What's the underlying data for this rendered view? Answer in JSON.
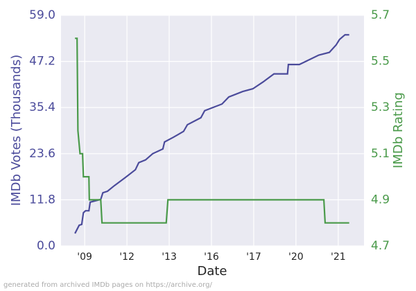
{
  "chart_data": {
    "type": "line",
    "xlabel": "Date",
    "ylabel": "IMDb Votes (Thousands)",
    "y2label": "IMDb Rating",
    "footnote": "generated from archived IMDb pages on https://archive.org/",
    "xlim": [
      -0.56,
      6.61
    ],
    "xticks": [
      {
        "value": 0,
        "label": "'09"
      },
      {
        "value": 1,
        "label": "'12"
      },
      {
        "value": 2,
        "label": "'13"
      },
      {
        "value": 3,
        "label": "'16"
      },
      {
        "value": 4,
        "label": "'17"
      },
      {
        "value": 5,
        "label": "'20"
      },
      {
        "value": 6,
        "label": "'21"
      }
    ],
    "ylim": [
      0,
      59
    ],
    "yticks": [
      {
        "value": 0,
        "label": "0.0"
      },
      11.8,
      23.6,
      35.4,
      47.2,
      {
        "value": 59,
        "label": "59.0"
      }
    ],
    "y2lim": [
      4.7,
      5.7
    ],
    "y2ticks": [
      4.7,
      4.9,
      5.1,
      5.3,
      5.5,
      5.7
    ],
    "grid": true,
    "series": [
      {
        "name": "IMDb Votes (Thousands)",
        "color": "#4b4b9b",
        "x": [
          -0.23,
          -0.13,
          -0.07,
          -0.03,
          0.02,
          0.1,
          0.13,
          0.38,
          0.43,
          0.54,
          0.7,
          0.95,
          1.2,
          1.28,
          1.44,
          1.61,
          1.85,
          1.89,
          2.1,
          2.34,
          2.43,
          2.75,
          2.84,
          3.25,
          3.41,
          3.74,
          3.98,
          4.23,
          4.48,
          4.8,
          4.82,
          5.08,
          5.54,
          5.79,
          5.95,
          6.03,
          6.16,
          6.26
        ],
        "values": [
          3.2,
          5.3,
          5.5,
          8.5,
          9,
          9,
          11.2,
          11.9,
          13.6,
          14,
          15.4,
          17.4,
          19.5,
          21.3,
          22,
          23.6,
          24.8,
          26.6,
          27.8,
          29.3,
          31,
          32.8,
          34.6,
          36.3,
          38.1,
          39.5,
          40.2,
          42,
          44,
          44,
          46.4,
          46.4,
          48.8,
          49.5,
          51.4,
          52.8,
          54,
          54
        ]
      },
      {
        "name": "IMDb Rating",
        "color": "#4a9a4a",
        "axis": "y2",
        "x": [
          -0.23,
          -0.18,
          -0.16,
          -0.11,
          -0.05,
          -0.03,
          0.1,
          0.11,
          0.38,
          0.41,
          1.93,
          1.97,
          5.66,
          5.69,
          6.26
        ],
        "values": [
          5.6,
          5.6,
          5.2,
          5.1,
          5.1,
          5.0,
          5.0,
          4.9,
          4.9,
          4.8,
          4.8,
          4.9,
          4.9,
          4.8,
          4.8
        ]
      }
    ]
  }
}
